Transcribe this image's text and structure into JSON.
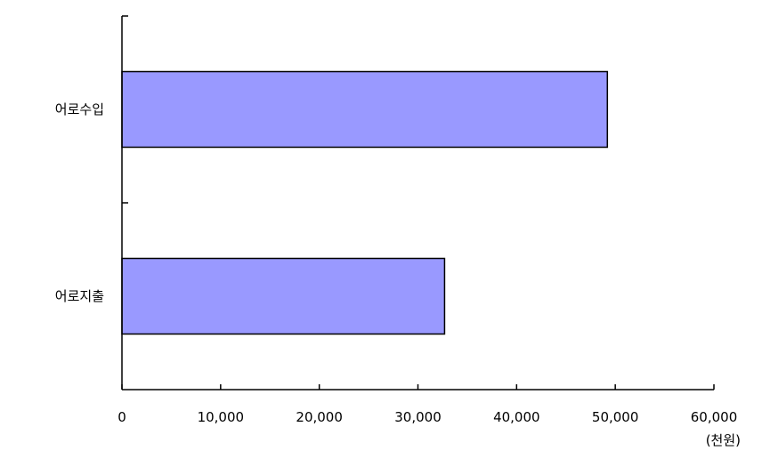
{
  "chart_data": {
    "type": "bar",
    "orientation": "horizontal",
    "categories": [
      "어로수입",
      "어로지출"
    ],
    "values": [
      49200,
      32700
    ],
    "xlim": [
      0,
      60000
    ],
    "xticks": [
      0,
      10000,
      20000,
      30000,
      40000,
      50000,
      60000
    ],
    "xtick_labels": [
      "0",
      "10,000",
      "20,000",
      "30,000",
      "40,000",
      "50,000",
      "60,000"
    ],
    "unit_label": "(천원)",
    "bar_color": "#9999ff",
    "bar_edge_color": "#000000",
    "grid": false,
    "legend": "none"
  }
}
